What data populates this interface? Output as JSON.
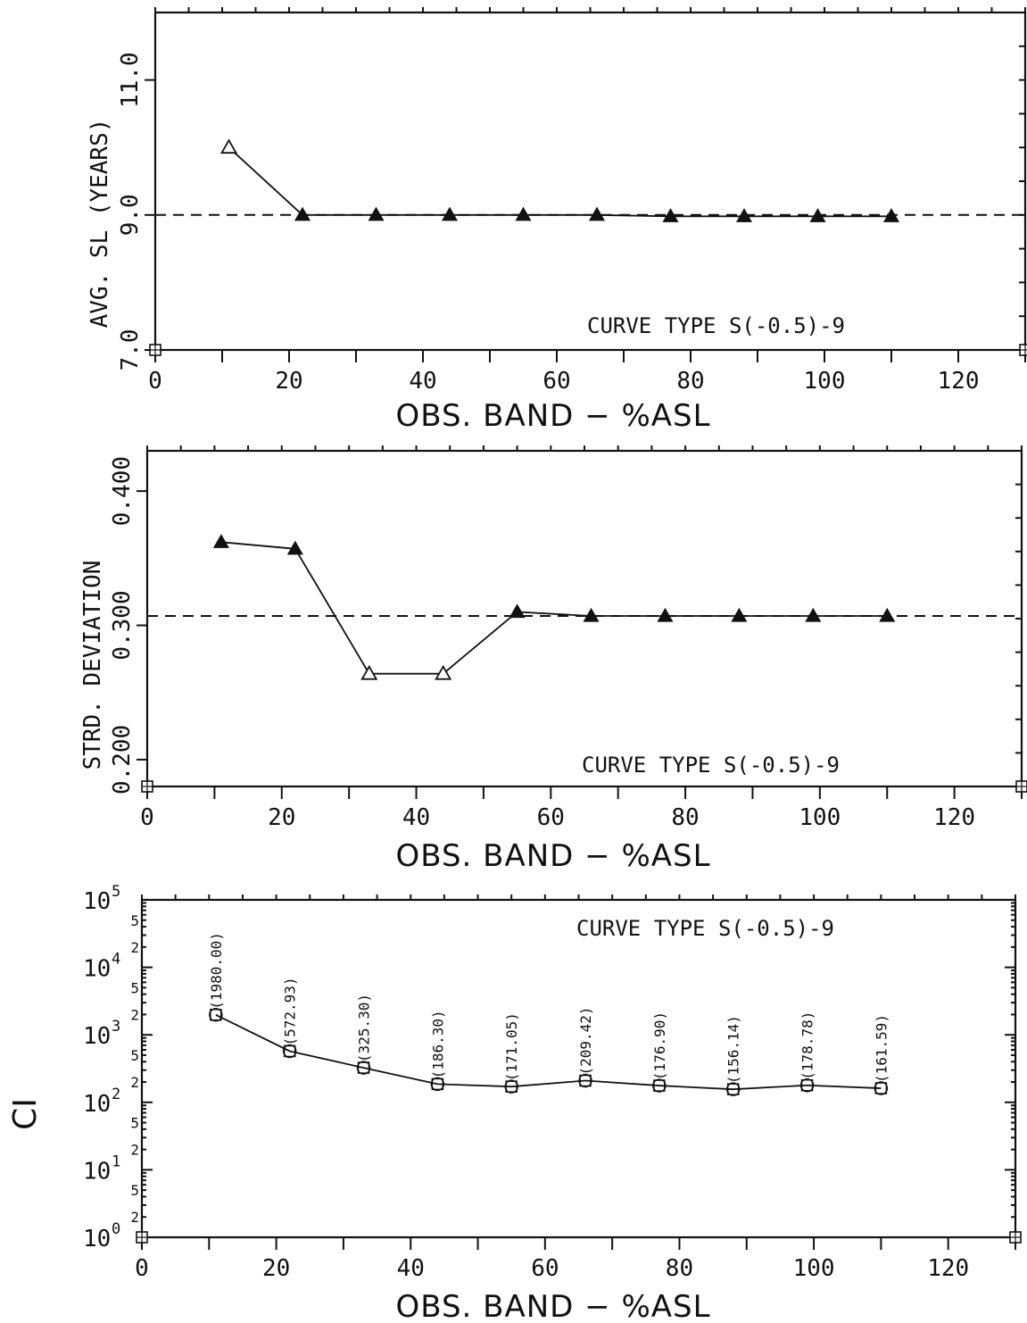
{
  "chart_data": [
    {
      "type": "line",
      "xlabel": "OBS. BAND − %ASL",
      "ylabel": "AVG. SL (YEARS)",
      "annotation": "CURVE TYPE S(-0.5)-9",
      "xlim": [
        0,
        130
      ],
      "ylim": [
        7.0,
        12.0
      ],
      "scale": "linear",
      "x_ticks": [
        "0",
        "20",
        "40",
        "60",
        "80",
        "100",
        "120"
      ],
      "y_ticks": [
        "7.0",
        "9.0",
        "11.0"
      ],
      "reference_line": 9.0,
      "series": [
        {
          "x": [
            11,
            22,
            33,
            44,
            55,
            66,
            77,
            88,
            99,
            110
          ],
          "values": [
            10.0,
            9.0,
            9.0,
            9.0,
            9.0,
            9.0,
            8.98,
            8.98,
            8.98,
            8.98
          ],
          "marker": "triangle",
          "open_markers": [
            0
          ]
        }
      ]
    },
    {
      "type": "line",
      "xlabel": "OBS. BAND − %ASL",
      "ylabel": "STRD. DEVIATION",
      "annotation": "CURVE TYPE S(-0.5)-9",
      "xlim": [
        0,
        130
      ],
      "ylim": [
        0.18,
        0.43
      ],
      "scale": "linear",
      "x_ticks": [
        "0",
        "20",
        "40",
        "60",
        "80",
        "100",
        "120"
      ],
      "y_ticks": [
        "0.200",
        "0.300",
        "0.400"
      ],
      "reference_line": 0.307,
      "series": [
        {
          "x": [
            11,
            22,
            33,
            44,
            55,
            66,
            77,
            88,
            99,
            110
          ],
          "values": [
            0.362,
            0.357,
            0.264,
            0.264,
            0.31,
            0.307,
            0.307,
            0.307,
            0.307,
            0.307
          ],
          "marker": "triangle",
          "open_markers": [
            2,
            3
          ]
        }
      ]
    },
    {
      "type": "line",
      "xlabel": "OBS. BAND − %ASL",
      "ylabel": "CI",
      "annotation": "CURVE TYPE S(-0.5)-9",
      "xlim": [
        0,
        130
      ],
      "ylim": [
        1,
        100000
      ],
      "scale": "log",
      "y_ticks": [
        "10",
        "10",
        "10",
        "10",
        "10",
        "10"
      ],
      "y_tick_exponents": [
        "0",
        "1",
        "2",
        "3",
        "4",
        "5"
      ],
      "x_ticks": [
        "0",
        "20",
        "40",
        "60",
        "80",
        "100",
        "120"
      ],
      "series": [
        {
          "x": [
            11,
            22,
            33,
            44,
            55,
            66,
            77,
            88,
            99,
            110
          ],
          "values": [
            1980.0,
            572.93,
            325.3,
            186.3,
            171.05,
            209.42,
            176.9,
            156.14,
            178.78,
            161.59
          ],
          "marker": "circle-square",
          "data_labels": [
            "1980.00",
            "572.93",
            "325.30",
            "186.30",
            "171.05",
            "209.42",
            "176.90",
            "156.14",
            "178.78",
            "161.59"
          ]
        }
      ]
    }
  ]
}
